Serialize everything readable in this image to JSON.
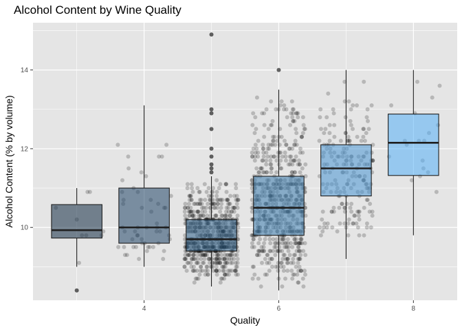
{
  "chart_data": {
    "type": "boxplot",
    "title": "Alcohol Content by Wine Quality",
    "xlabel": "Quality",
    "ylabel": "Alcohol Content (% by volume)",
    "x_ticks": [
      4,
      6,
      8
    ],
    "y_ticks": [
      10,
      12,
      14
    ],
    "xlim": [
      2.35,
      8.65
    ],
    "ylim": [
      8.15,
      15.2
    ],
    "grid": true,
    "legend": "none",
    "colors": {
      "panel_background": "#e5e5e5",
      "grid": "#ffffff",
      "box_outline": "#1e1e1e",
      "point": "#000000",
      "fill_low_quality": "#132b43",
      "fill_high_quality": "#56b1f7"
    },
    "boxes": [
      {
        "quality": 3,
        "count": 10,
        "min": 9.0,
        "q1": 9.73,
        "median": 9.93,
        "q3": 10.58,
        "max": 11.0,
        "outliers": [
          8.4
        ]
      },
      {
        "quality": 4,
        "count": 53,
        "min": 9.0,
        "q1": 9.6,
        "median": 10.0,
        "q3": 11.0,
        "max": 13.1,
        "outliers": []
      },
      {
        "quality": 5,
        "count": 681,
        "min": 8.5,
        "q1": 9.4,
        "median": 9.7,
        "q3": 10.2,
        "max": 11.3,
        "outliers": [
          11.4,
          11.5,
          11.6,
          11.8,
          12.0,
          12.5,
          12.9,
          13.0,
          14.9
        ]
      },
      {
        "quality": 6,
        "count": 638,
        "min": 8.4,
        "q1": 9.8,
        "median": 10.5,
        "q3": 11.3,
        "max": 13.5,
        "outliers": [
          14.0
        ]
      },
      {
        "quality": 7,
        "count": 199,
        "min": 9.2,
        "q1": 10.8,
        "median": 11.5,
        "q3": 12.1,
        "max": 14.0,
        "outliers": []
      },
      {
        "quality": 8,
        "count": 18,
        "min": 9.8,
        "q1": 11.32,
        "median": 12.15,
        "q3": 12.88,
        "max": 14.0,
        "outliers": []
      }
    ]
  }
}
